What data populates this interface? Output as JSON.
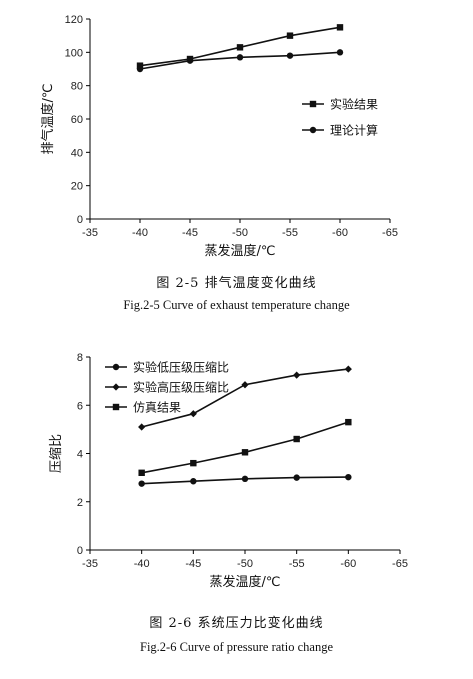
{
  "chart_data": [
    {
      "type": "line",
      "caption_cn": "图 2-5   排气温度变化曲线",
      "caption_en": "Fig.2-5    Curve of exhaust temperature change",
      "xlabel": "蒸发温度/℃",
      "ylabel": "排气温度/℃",
      "x_ticks": [
        "-35",
        "-40",
        "-45",
        "-50",
        "-55",
        "-60",
        "-65"
      ],
      "y_ticks": [
        "0",
        "20",
        "40",
        "60",
        "80",
        "100",
        "120"
      ],
      "xlim": [
        -35,
        -65
      ],
      "ylim": [
        0,
        120
      ],
      "legend_position": "right",
      "series": [
        {
          "name": "实验结果",
          "marker": "square",
          "x": [
            -40,
            -45,
            -50,
            -55,
            -60
          ],
          "values": [
            92,
            96,
            103,
            110,
            115
          ]
        },
        {
          "name": "理论计算",
          "marker": "circle",
          "x": [
            -40,
            -45,
            -50,
            -55,
            -60
          ],
          "values": [
            90,
            95,
            97,
            98,
            100
          ]
        }
      ]
    },
    {
      "type": "line",
      "caption_cn": "图 2-6   系统压力比变化曲线",
      "caption_en": "Fig.2-6    Curve of pressure ratio change",
      "xlabel": "蒸发温度/℃",
      "ylabel": "压缩比",
      "x_ticks": [
        "-35",
        "-40",
        "-45",
        "-50",
        "-55",
        "-60",
        "-65"
      ],
      "y_ticks": [
        "0",
        "2",
        "4",
        "6",
        "8"
      ],
      "xlim": [
        -35,
        -65
      ],
      "ylim": [
        0,
        8
      ],
      "legend_position": "top-left",
      "series": [
        {
          "name": "实验低压级压缩比",
          "marker": "circle",
          "x": [
            -40,
            -45,
            -50,
            -55,
            -60
          ],
          "values": [
            2.75,
            2.85,
            2.95,
            3.0,
            3.02
          ]
        },
        {
          "name": "实验高压级压缩比",
          "marker": "diamond",
          "x": [
            -40,
            -45,
            -50,
            -55,
            -60
          ],
          "values": [
            5.1,
            5.65,
            6.85,
            7.25,
            7.5
          ]
        },
        {
          "name": "仿真结果",
          "marker": "square",
          "x": [
            -40,
            -45,
            -50,
            -55,
            -60
          ],
          "values": [
            3.2,
            3.6,
            4.05,
            4.6,
            5.3
          ]
        }
      ]
    }
  ]
}
